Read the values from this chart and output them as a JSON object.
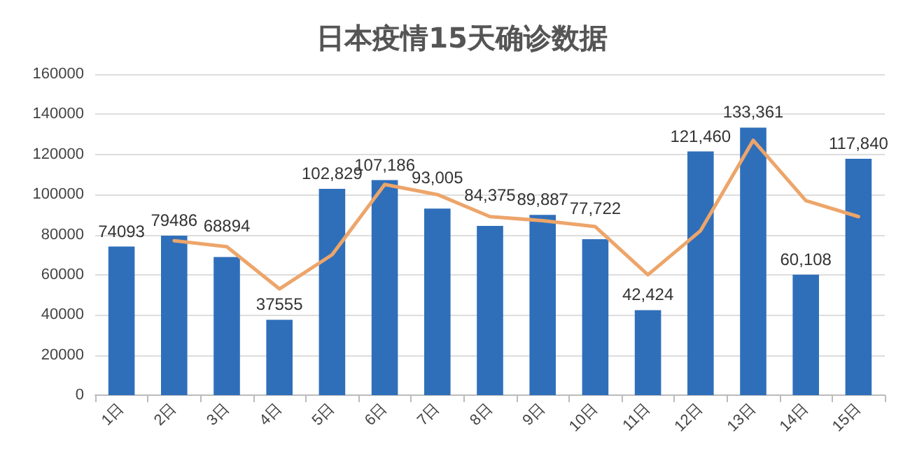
{
  "chart_data": {
    "type": "bar",
    "title": "日本疫情15天确诊数据",
    "categories": [
      "1日",
      "2日",
      "3日",
      "4日",
      "5日",
      "6日",
      "7日",
      "8日",
      "9日",
      "10日",
      "11日",
      "12日",
      "13日",
      "14日",
      "15日"
    ],
    "series": [
      {
        "color": "#2f6fba",
        "values": [
          74093,
          79486,
          68894,
          37555,
          102829,
          107186,
          93005,
          84375,
          89887,
          77722,
          42424,
          121460,
          133361,
          60108,
          117840
        ],
        "value_labels": [
          "74093",
          "79486",
          "68894",
          "37555",
          "102,829",
          "107,186",
          "93,005",
          "84,375",
          "89,887",
          "77,722",
          "42,424",
          "121,460",
          "133,361",
          "60,108",
          "117,840"
        ]
      },
      {
        "type": "line",
        "color": "#eda56a",
        "values": [
          null,
          77000,
          74000,
          53000,
          70000,
          105000,
          100000,
          89000,
          87000,
          84000,
          60000,
          82000,
          127000,
          97000,
          89000
        ]
      }
    ],
    "ylim": [
      0,
      160000
    ],
    "yticks": [
      0,
      20000,
      40000,
      60000,
      80000,
      100000,
      120000,
      140000,
      160000
    ],
    "grid": "y",
    "marker": "none",
    "line_style": "solid"
  }
}
